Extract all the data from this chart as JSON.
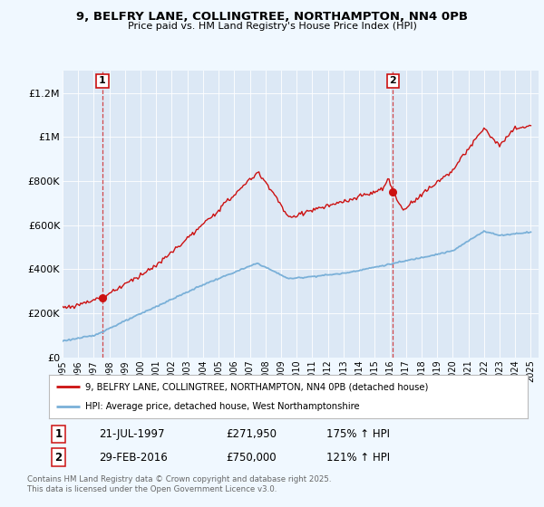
{
  "title1": "9, BELFRY LANE, COLLINGTREE, NORTHAMPTON, NN4 0PB",
  "title2": "Price paid vs. HM Land Registry's House Price Index (HPI)",
  "ylim": [
    0,
    1300000
  ],
  "yticks": [
    0,
    200000,
    400000,
    600000,
    800000,
    1000000,
    1200000
  ],
  "ytick_labels": [
    "£0",
    "£200K",
    "£400K",
    "£600K",
    "£800K",
    "£1M",
    "£1.2M"
  ],
  "xlim_min": 1995,
  "xlim_max": 2025.5,
  "bg_color": "#f0f8ff",
  "plot_bg": "#dce8f5",
  "ann1_x": 1997.55,
  "ann1_y": 271950,
  "ann2_x": 2016.17,
  "ann2_y": 750000,
  "red_color": "#cc1111",
  "blue_color": "#7ab0d8",
  "legend_line1": "9, BELFRY LANE, COLLINGTREE, NORTHAMPTON, NN4 0PB (detached house)",
  "legend_line2": "HPI: Average price, detached house, West Northamptonshire",
  "table_row1": [
    "1",
    "21-JUL-1997",
    "£271,950",
    "175% ↑ HPI"
  ],
  "table_row2": [
    "2",
    "29-FEB-2016",
    "£750,000",
    "121% ↑ HPI"
  ],
  "footer": "Contains HM Land Registry data © Crown copyright and database right 2025.\nThis data is licensed under the Open Government Licence v3.0."
}
